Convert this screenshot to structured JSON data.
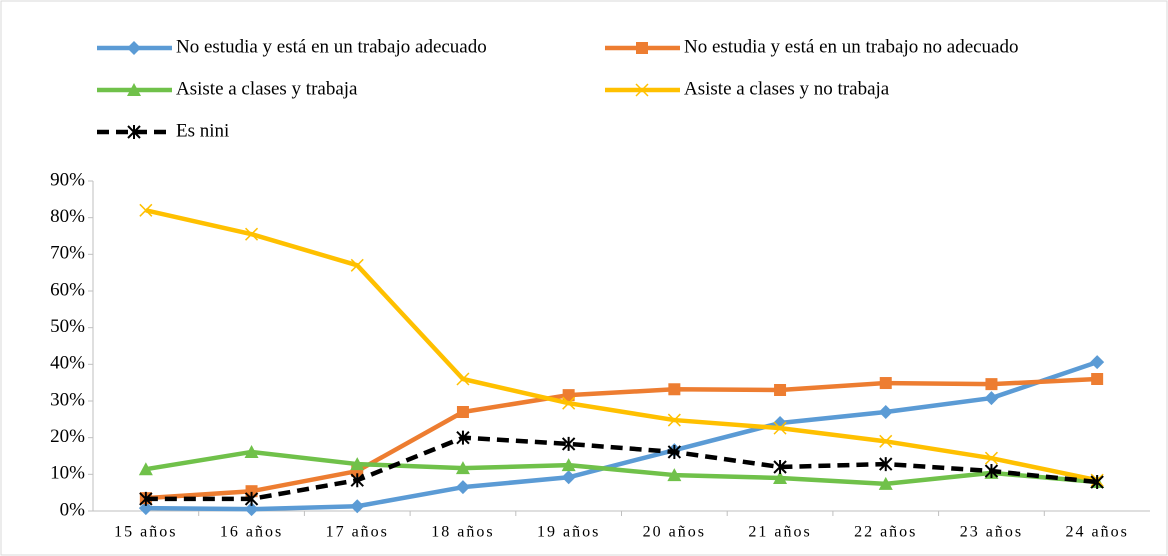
{
  "chart_data": {
    "type": "line",
    "categories": [
      "15 años",
      "16 años",
      "17 años",
      "18 años",
      "19 años",
      "20 años",
      "21 años",
      "22 años",
      "23 años",
      "24 años"
    ],
    "series": [
      {
        "name": "No estudia y está en un trabajo adecuado",
        "color": "#5b9bd5",
        "marker": "diamond",
        "values": [
          0.8,
          0.5,
          1.3,
          6.5,
          9.2,
          16.6,
          24,
          27,
          30.8,
          40.6
        ]
      },
      {
        "name": "No estudia y está en un trabajo no adecuado",
        "color": "#ed7d31",
        "marker": "square",
        "values": [
          3.5,
          5.4,
          10.9,
          27,
          31.6,
          33.2,
          33,
          34.9,
          34.6,
          36
        ]
      },
      {
        "name": "Asiste a clases y trabaja",
        "color": "#70c14a",
        "marker": "triangle",
        "values": [
          11.4,
          16.1,
          12.8,
          11.7,
          12.5,
          9.8,
          9,
          7.4,
          10.4,
          7.9
        ]
      },
      {
        "name": "Asiste a clases y no trabaja",
        "color": "#ffc000",
        "marker": "x",
        "values": [
          82,
          75.5,
          67,
          36,
          29.4,
          24.8,
          22.6,
          19,
          14.4,
          8.4
        ]
      },
      {
        "name": "Es nini",
        "color": "#000000",
        "marker": "asterisk",
        "dash": true,
        "values": [
          3.3,
          3.3,
          8.4,
          20,
          18.3,
          16.1,
          12,
          12.8,
          10.9,
          7.9
        ]
      }
    ],
    "ylim": [
      0,
      90
    ],
    "yticks": [
      {
        "value": 0,
        "label": "0%"
      },
      {
        "value": 10,
        "label": "10%"
      },
      {
        "value": 20,
        "label": "20%"
      },
      {
        "value": 30,
        "label": "30%"
      },
      {
        "value": 40,
        "label": "40%"
      },
      {
        "value": 50,
        "label": "50%"
      },
      {
        "value": 60,
        "label": "60%"
      },
      {
        "value": 70,
        "label": "70%"
      },
      {
        "value": 80,
        "label": "80%"
      },
      {
        "value": 90,
        "label": "90%"
      }
    ],
    "grid": false
  }
}
